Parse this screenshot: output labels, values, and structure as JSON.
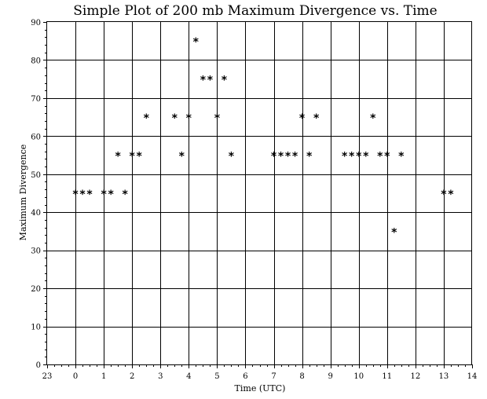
{
  "chart_data": {
    "type": "scatter",
    "title": "Simple Plot of 200 mb Maximum Divergence vs. Time",
    "xlabel": "Time (UTC)",
    "ylabel": "Maximum Divergence",
    "xlim": [
      -1,
      14
    ],
    "ylim": [
      0,
      90
    ],
    "x_tick_labels": [
      "23",
      "0",
      "1",
      "2",
      "3",
      "4",
      "5",
      "6",
      "7",
      "8",
      "9",
      "10",
      "11",
      "12",
      "13",
      "14"
    ],
    "y_tick_labels": [
      "0",
      "10",
      "20",
      "30",
      "40",
      "50",
      "60",
      "70",
      "80",
      "90"
    ],
    "grid": true,
    "marker": "*",
    "series": [
      {
        "points": [
          [
            0.0,
            45
          ],
          [
            0.25,
            45
          ],
          [
            0.5,
            45
          ],
          [
            1.0,
            45
          ],
          [
            1.25,
            45
          ],
          [
            1.5,
            55
          ],
          [
            1.75,
            45
          ],
          [
            2.0,
            55
          ],
          [
            2.25,
            55
          ],
          [
            2.5,
            65
          ],
          [
            3.5,
            65
          ],
          [
            3.75,
            55
          ],
          [
            4.0,
            65
          ],
          [
            4.25,
            85
          ],
          [
            4.5,
            75
          ],
          [
            4.75,
            75
          ],
          [
            5.0,
            65
          ],
          [
            5.25,
            75
          ],
          [
            5.5,
            55
          ],
          [
            7.0,
            55
          ],
          [
            7.25,
            55
          ],
          [
            7.5,
            55
          ],
          [
            7.75,
            55
          ],
          [
            8.0,
            65
          ],
          [
            8.25,
            55
          ],
          [
            8.5,
            65
          ],
          [
            9.5,
            55
          ],
          [
            9.75,
            55
          ],
          [
            10.0,
            55
          ],
          [
            10.25,
            55
          ],
          [
            10.5,
            65
          ],
          [
            10.75,
            55
          ],
          [
            11.0,
            55
          ],
          [
            11.25,
            35
          ],
          [
            11.5,
            55
          ],
          [
            13.0,
            45
          ],
          [
            13.25,
            45
          ]
        ]
      }
    ]
  }
}
